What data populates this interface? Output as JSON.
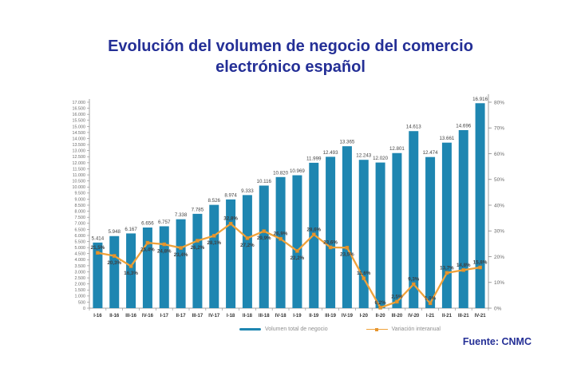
{
  "title": {
    "lines": [
      "Evolución del volumen de negocio del comercio",
      "electrónico español"
    ]
  },
  "legend": {
    "bars": "Volumen total de negocio",
    "line": "Variación interanual"
  },
  "source": "Fuente: CNMC",
  "colors": {
    "bar": "#1e86b1",
    "line": "#f0a23a",
    "marker": "#e6952f",
    "title": "#242f96",
    "axis_text": "#6a6a6a",
    "x_label_text": "#333333",
    "value_label_text": "#454545"
  },
  "chart_data": {
    "type": "bar",
    "title": "Evolución del volumen de negocio del comercio electrónico español",
    "xlabel": "",
    "ylabel": "",
    "categories": [
      "I-16",
      "II-16",
      "III-16",
      "IV-16",
      "I-17",
      "II-17",
      "III-17",
      "IV-17",
      "I-18",
      "II-18",
      "III-18",
      "IV-18",
      "I-19",
      "II-19",
      "III-19",
      "IV-19",
      "I-20",
      "II-20",
      "III-20",
      "IV-20",
      "I-21",
      "II-21",
      "III-21",
      "IV-21"
    ],
    "series": [
      {
        "name": "Volumen total de negocio",
        "type": "bar",
        "axis": "left",
        "values": [
          5414,
          5948,
          6167,
          6656,
          6757,
          7338,
          7785,
          8526,
          8974,
          9333,
          10116,
          10820,
          10969,
          11999,
          12493,
          13365,
          12243,
          12020,
          12801,
          14613,
          12474,
          13661,
          14696,
          16916
        ]
      },
      {
        "name": "Variación interanual",
        "type": "line",
        "axis": "right",
        "values_pct": [
          21.5,
          20.3,
          16.3,
          25.4,
          24.8,
          23.4,
          26.2,
          28.1,
          32.8,
          27.2,
          29.9,
          26.9,
          22.2,
          28.6,
          23.6,
          23.5,
          11.6,
          0.2,
          2.5,
          9.3,
          1.9,
          13.7,
          14.8,
          15.8
        ]
      }
    ],
    "left_axis": {
      "min": 0,
      "max": 17000,
      "step": 500
    },
    "right_axis": {
      "min": 0,
      "max": 80,
      "step": 10,
      "suffix": "%"
    },
    "grid": false,
    "legend_position": "bottom"
  }
}
